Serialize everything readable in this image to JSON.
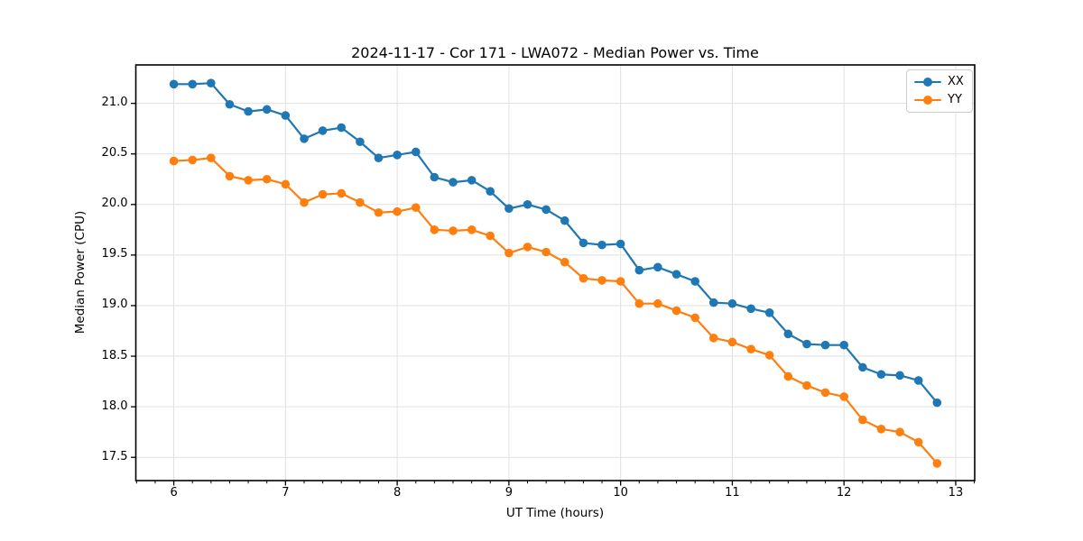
{
  "title": "2024-11-17 - Cor 171 - LWA072 - Median Power vs. Time",
  "legend": {
    "items": [
      {
        "label": "XX",
        "color": "#1f77b4"
      },
      {
        "label": "YY",
        "color": "#ff7f0e"
      }
    ],
    "position": "upper right"
  },
  "colors": {
    "series_xx": "#1f77b4",
    "series_yy": "#ff7f0e",
    "grid": "#e0e0e0",
    "spine": "#000000",
    "background": "#ffffff"
  },
  "chart_data": {
    "type": "line",
    "title": "2024-11-17 - Cor 171 - LWA072 - Median Power vs. Time",
    "xlabel": "UT Time (hours)",
    "ylabel": "Median Power (CPU)",
    "xlim": [
      5.66,
      13.17
    ],
    "ylim": [
      17.27,
      21.38
    ],
    "x_ticks": [
      6,
      7,
      8,
      9,
      10,
      11,
      12,
      13
    ],
    "y_ticks": [
      17.5,
      18.0,
      18.5,
      19.0,
      19.5,
      20.0,
      20.5,
      21.0
    ],
    "x_minor_step_hours": 0.166667,
    "grid": true,
    "legend_position": "upper right",
    "marker": "circle",
    "x": [
      6.0,
      6.167,
      6.333,
      6.5,
      6.667,
      6.833,
      7.0,
      7.167,
      7.333,
      7.5,
      7.667,
      7.833,
      8.0,
      8.167,
      8.333,
      8.5,
      8.667,
      8.833,
      9.0,
      9.167,
      9.333,
      9.5,
      9.667,
      9.833,
      10.0,
      10.167,
      10.333,
      10.5,
      10.667,
      10.833,
      11.0,
      11.167,
      11.333,
      11.5,
      11.667,
      11.833,
      12.0,
      12.167,
      12.333,
      12.5,
      12.667,
      12.833
    ],
    "series": [
      {
        "name": "XX",
        "color": "#1f77b4",
        "values": [
          21.19,
          21.19,
          21.2,
          20.99,
          20.92,
          20.94,
          20.88,
          20.65,
          20.73,
          20.76,
          20.62,
          20.46,
          20.49,
          20.52,
          20.27,
          20.22,
          20.24,
          20.13,
          19.96,
          20.0,
          19.95,
          19.84,
          19.62,
          19.6,
          19.61,
          19.35,
          19.38,
          19.31,
          19.24,
          19.03,
          19.02,
          18.97,
          18.93,
          18.72,
          18.62,
          18.61,
          18.61,
          18.39,
          18.32,
          18.31,
          18.26,
          18.04
        ]
      },
      {
        "name": "YY",
        "color": "#ff7f0e",
        "values": [
          20.43,
          20.44,
          20.46,
          20.28,
          20.24,
          20.25,
          20.2,
          20.02,
          20.1,
          20.11,
          20.02,
          19.92,
          19.93,
          19.97,
          19.75,
          19.74,
          19.75,
          19.69,
          19.52,
          19.58,
          19.53,
          19.43,
          19.27,
          19.25,
          19.24,
          19.02,
          19.02,
          18.95,
          18.88,
          18.68,
          18.64,
          18.57,
          18.51,
          18.3,
          18.21,
          18.14,
          18.1,
          17.87,
          17.78,
          17.75,
          17.65,
          17.44
        ]
      }
    ]
  }
}
